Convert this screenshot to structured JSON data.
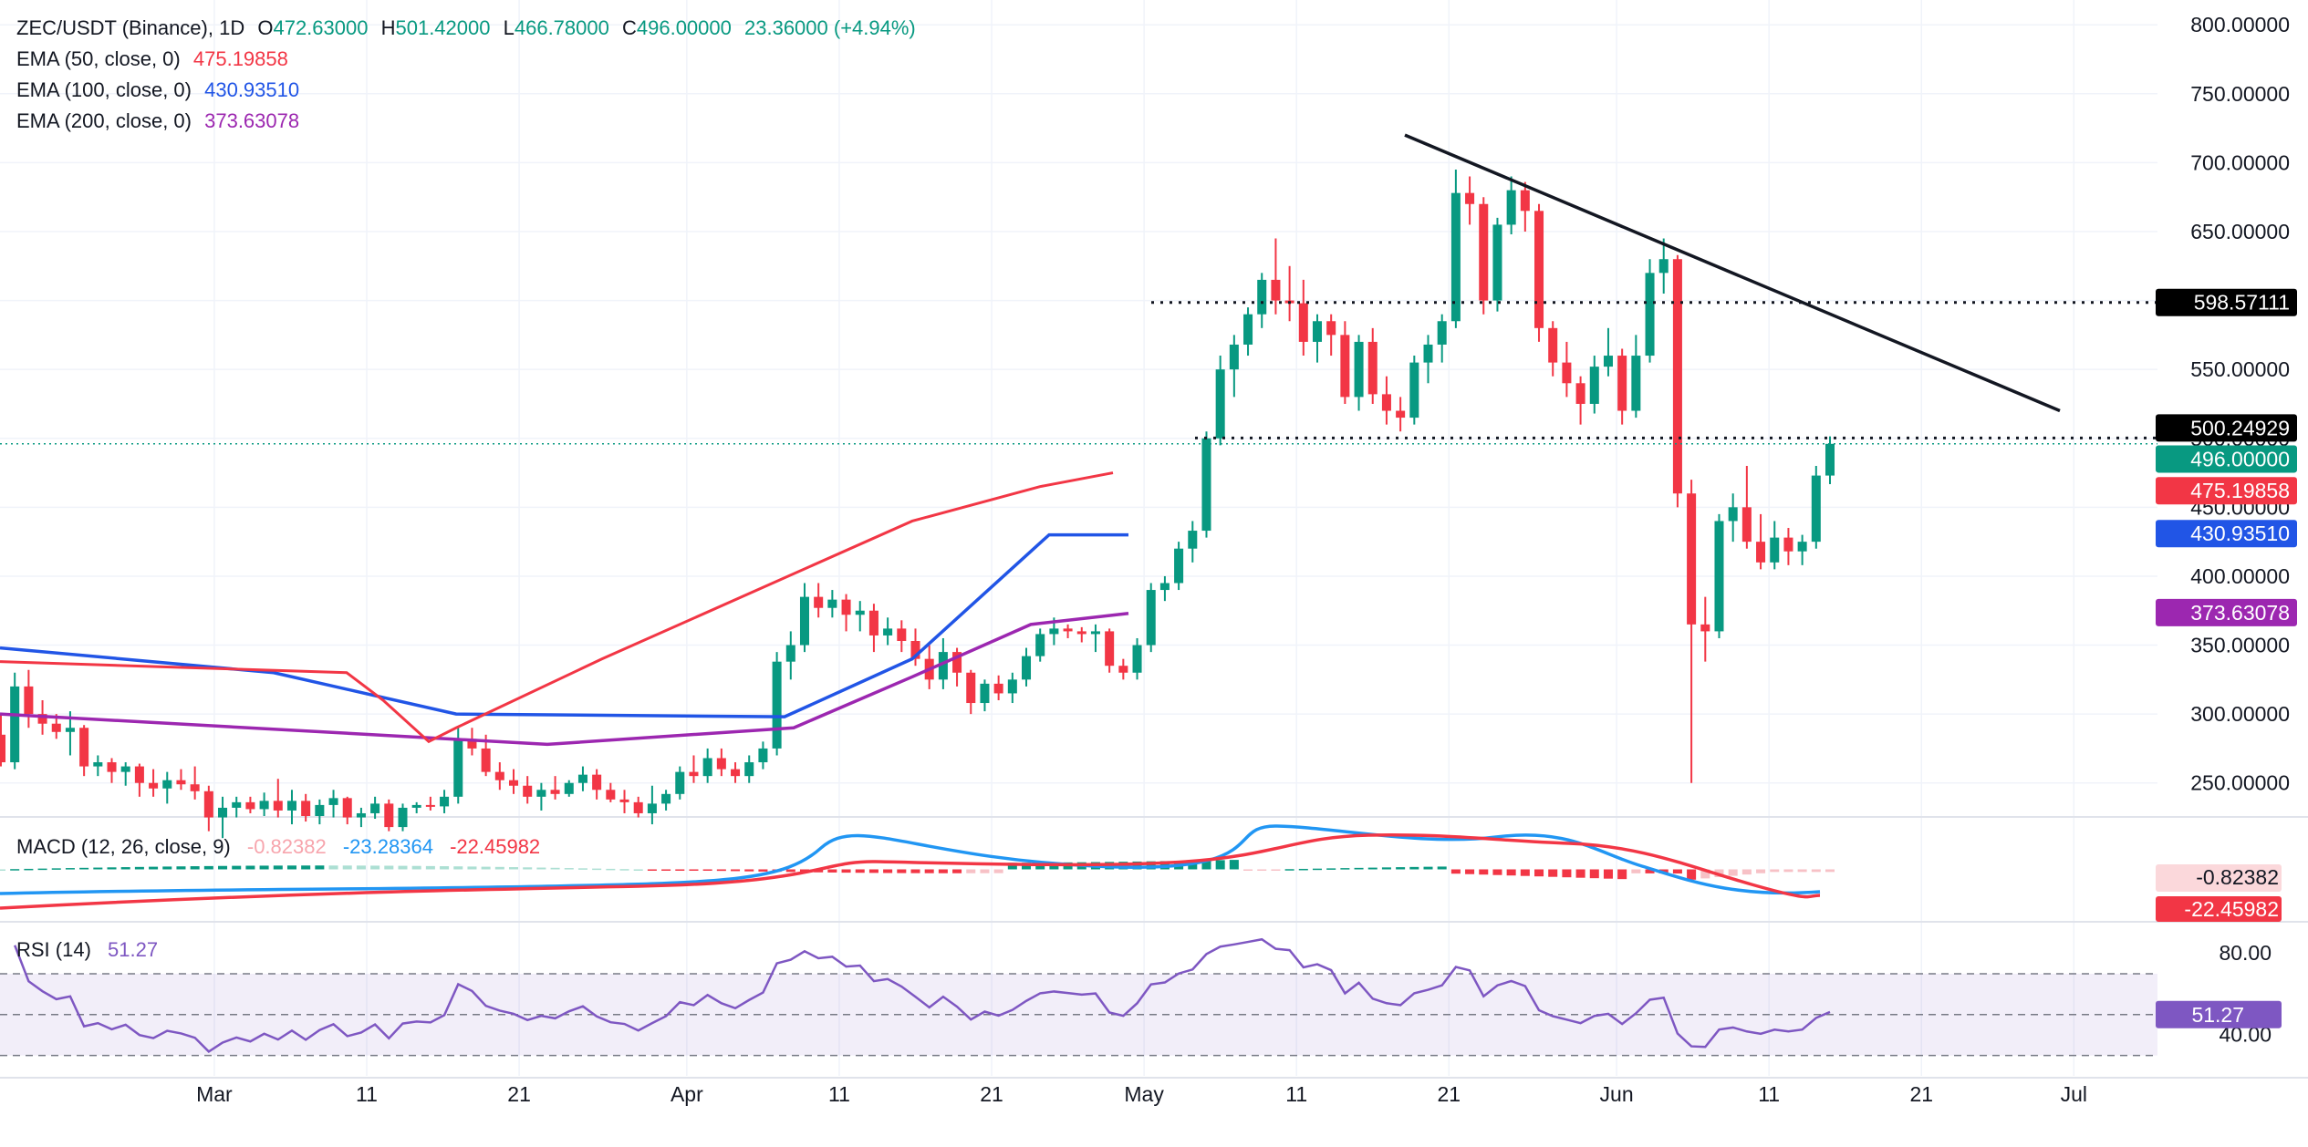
{
  "header": {
    "symbol": "ZEC/USDT (Binance), 1D",
    "ohlc": {
      "o_label": "O",
      "o": "472.63000",
      "h_label": "H",
      "h": "501.42000",
      "l_label": "L",
      "l": "466.78000",
      "c_label": "C",
      "c": "496.00000",
      "change": "23.36000 (+4.94%)"
    }
  },
  "indicators": [
    {
      "label": "EMA (50, close, 0)",
      "value": "475.19858",
      "color": "#f23645"
    },
    {
      "label": "EMA (100, close, 0)",
      "value": "430.93510",
      "color": "#2155e6"
    },
    {
      "label": "EMA (200, close, 0)",
      "value": "373.63078",
      "color": "#9c27b0"
    }
  ],
  "macd_legend": {
    "label": "MACD (12, 26, close, 9)",
    "histogram": "-0.82382",
    "macd": "-23.28364",
    "signal": "-22.45982"
  },
  "rsi_legend": {
    "label": "RSI (14)",
    "value": "51.27"
  },
  "price_labels": {
    "level_upper": "598.57111",
    "level_lower": "500.24929",
    "last": "496.00000",
    "ema50": "475.19858",
    "ema100": "430.93510",
    "ema200": "373.63078",
    "macd_hist": "-0.82382",
    "macd_signal": "-22.45982",
    "rsi": "51.27"
  },
  "colors": {
    "up": "#089981",
    "down": "#f23645",
    "ema50": "#f23645",
    "ema100": "#2155e6",
    "ema200": "#9c27b0",
    "rsi": "#7e57c2",
    "macd": "#2196f3",
    "signal": "#f23645"
  },
  "chart_data": {
    "type": "candlestick",
    "title": "ZEC/USDT (Binance), 1D",
    "y_ticks": [
      "250.00000",
      "300.00000",
      "350.00000",
      "400.00000",
      "450.00000",
      "500.00000",
      "550.00000",
      "600.00000",
      "650.00000",
      "700.00000",
      "750.00000",
      "800.00000"
    ],
    "ylim": [
      226,
      818
    ],
    "x_labels": [
      {
        "date": "2025-03-01",
        "label": "Mar"
      },
      {
        "date": "2025-03-11",
        "label": "11"
      },
      {
        "date": "2025-03-21",
        "label": "21"
      },
      {
        "date": "2025-04-01",
        "label": "Apr"
      },
      {
        "date": "2025-04-11",
        "label": "11"
      },
      {
        "date": "2025-04-21",
        "label": "21"
      },
      {
        "date": "2025-05-01",
        "label": "May"
      },
      {
        "date": "2025-05-11",
        "label": "11"
      },
      {
        "date": "2025-05-21",
        "label": "21"
      },
      {
        "date": "2025-06-01",
        "label": "Jun"
      },
      {
        "date": "2025-06-11",
        "label": "11"
      },
      {
        "date": "2025-06-21",
        "label": "21"
      },
      {
        "date": "2025-07-01",
        "label": "Jul"
      }
    ],
    "dates": [
      "2025-02-15",
      "2025-06-15"
    ],
    "ohlc": [
      [
        285,
        300,
        262,
        265
      ],
      [
        265,
        330,
        260,
        320
      ],
      [
        320,
        332,
        290,
        300
      ],
      [
        300,
        310,
        285,
        293
      ],
      [
        293,
        300,
        282,
        287
      ],
      [
        287,
        302,
        270,
        290
      ],
      [
        290,
        292,
        255,
        262
      ],
      [
        262,
        270,
        255,
        265
      ],
      [
        265,
        268,
        250,
        258
      ],
      [
        258,
        265,
        248,
        262
      ],
      [
        262,
        264,
        240,
        250
      ],
      [
        250,
        260,
        240,
        246
      ],
      [
        246,
        258,
        235,
        252
      ],
      [
        252,
        260,
        245,
        249
      ],
      [
        249,
        262,
        238,
        244
      ],
      [
        244,
        248,
        215,
        225
      ],
      [
        225,
        240,
        210,
        232
      ],
      [
        232,
        240,
        225,
        236
      ],
      [
        236,
        240,
        228,
        231
      ],
      [
        231,
        243,
        226,
        237
      ],
      [
        237,
        253,
        225,
        230
      ],
      [
        230,
        245,
        220,
        237
      ],
      [
        237,
        242,
        222,
        226
      ],
      [
        226,
        238,
        220,
        234
      ],
      [
        234,
        245,
        225,
        239
      ],
      [
        239,
        240,
        220,
        225
      ],
      [
        225,
        232,
        218,
        228
      ],
      [
        228,
        240,
        224,
        235
      ],
      [
        235,
        238,
        215,
        218
      ],
      [
        218,
        235,
        215,
        232
      ],
      [
        232,
        236,
        228,
        234
      ],
      [
        234,
        240,
        230,
        233
      ],
      [
        233,
        245,
        228,
        240
      ],
      [
        240,
        290,
        235,
        282
      ],
      [
        282,
        290,
        270,
        275
      ],
      [
        275,
        285,
        255,
        258
      ],
      [
        258,
        265,
        245,
        252
      ],
      [
        252,
        260,
        242,
        248
      ],
      [
        248,
        255,
        235,
        240
      ],
      [
        240,
        250,
        230,
        245
      ],
      [
        245,
        255,
        238,
        242
      ],
      [
        242,
        252,
        240,
        250
      ],
      [
        250,
        262,
        244,
        256
      ],
      [
        256,
        260,
        238,
        245
      ],
      [
        245,
        250,
        236,
        238
      ],
      [
        238,
        245,
        228,
        236
      ],
      [
        236,
        240,
        225,
        228
      ],
      [
        228,
        248,
        220,
        235
      ],
      [
        235,
        245,
        230,
        242
      ],
      [
        242,
        262,
        238,
        258
      ],
      [
        258,
        270,
        250,
        255
      ],
      [
        255,
        275,
        250,
        268
      ],
      [
        268,
        275,
        255,
        260
      ],
      [
        260,
        265,
        250,
        255
      ],
      [
        255,
        270,
        250,
        265
      ],
      [
        265,
        280,
        260,
        275
      ],
      [
        275,
        345,
        270,
        338
      ],
      [
        338,
        360,
        325,
        350
      ],
      [
        350,
        395,
        345,
        385
      ],
      [
        385,
        395,
        370,
        377
      ],
      [
        377,
        390,
        370,
        383
      ],
      [
        383,
        387,
        360,
        372
      ],
      [
        372,
        382,
        360,
        375
      ],
      [
        375,
        380,
        345,
        357
      ],
      [
        357,
        370,
        350,
        362
      ],
      [
        362,
        368,
        345,
        353
      ],
      [
        353,
        362,
        335,
        340
      ],
      [
        340,
        350,
        318,
        325
      ],
      [
        325,
        355,
        318,
        345
      ],
      [
        345,
        348,
        320,
        330
      ],
      [
        330,
        332,
        300,
        308
      ],
      [
        308,
        325,
        302,
        322
      ],
      [
        322,
        328,
        310,
        315
      ],
      [
        315,
        330,
        308,
        325
      ],
      [
        325,
        348,
        320,
        342
      ],
      [
        342,
        362,
        338,
        358
      ],
      [
        358,
        370,
        350,
        362
      ],
      [
        362,
        365,
        355,
        360
      ],
      [
        360,
        363,
        352,
        358
      ],
      [
        358,
        365,
        345,
        360
      ],
      [
        360,
        362,
        330,
        335
      ],
      [
        335,
        340,
        325,
        330
      ],
      [
        330,
        355,
        325,
        350
      ],
      [
        350,
        395,
        345,
        390
      ],
      [
        390,
        400,
        382,
        395
      ],
      [
        395,
        425,
        390,
        420
      ],
      [
        420,
        440,
        410,
        433
      ],
      [
        433,
        505,
        428,
        500
      ],
      [
        500,
        560,
        495,
        550
      ],
      [
        550,
        575,
        530,
        568
      ],
      [
        568,
        595,
        560,
        590
      ],
      [
        590,
        620,
        580,
        615
      ],
      [
        615,
        645,
        590,
        600
      ],
      [
        600,
        625,
        585,
        598
      ],
      [
        598,
        615,
        560,
        570
      ],
      [
        570,
        590,
        555,
        585
      ],
      [
        585,
        590,
        560,
        575
      ],
      [
        575,
        585,
        525,
        530
      ],
      [
        530,
        575,
        520,
        570
      ],
      [
        570,
        580,
        525,
        532
      ],
      [
        532,
        545,
        510,
        520
      ],
      [
        520,
        530,
        505,
        515
      ],
      [
        515,
        560,
        510,
        555
      ],
      [
        555,
        575,
        540,
        568
      ],
      [
        568,
        590,
        555,
        585
      ],
      [
        585,
        695,
        580,
        678
      ],
      [
        678,
        690,
        655,
        670
      ],
      [
        670,
        675,
        590,
        600
      ],
      [
        600,
        660,
        592,
        655
      ],
      [
        655,
        690,
        648,
        680
      ],
      [
        680,
        686,
        650,
        665
      ],
      [
        665,
        670,
        570,
        580
      ],
      [
        580,
        585,
        545,
        555
      ],
      [
        555,
        570,
        530,
        540
      ],
      [
        540,
        545,
        510,
        525
      ],
      [
        525,
        560,
        518,
        552
      ],
      [
        552,
        580,
        545,
        560
      ],
      [
        560,
        565,
        510,
        520
      ],
      [
        520,
        575,
        515,
        560
      ],
      [
        560,
        630,
        555,
        620
      ],
      [
        620,
        645,
        605,
        630
      ],
      [
        630,
        633,
        450,
        460
      ],
      [
        460,
        470,
        250,
        365
      ],
      [
        365,
        385,
        338,
        360
      ],
      [
        360,
        445,
        355,
        440
      ],
      [
        440,
        460,
        425,
        450
      ],
      [
        450,
        480,
        420,
        425
      ],
      [
        425,
        445,
        405,
        410
      ],
      [
        410,
        440,
        405,
        428
      ],
      [
        428,
        435,
        408,
        418
      ],
      [
        418,
        430,
        408,
        425
      ],
      [
        425,
        480,
        420,
        473
      ],
      [
        473,
        501.42,
        466.78,
        496
      ]
    ],
    "ema50": [
      338,
      380,
      330,
      420,
      310,
      470,
      280,
      500,
      290,
      660,
      340,
      1000,
      440,
      1140,
      465,
      1220,
      475
    ],
    "ema100": [
      348,
      300,
      330,
      500,
      300,
      860,
      298,
      1000,
      340,
      1150,
      430,
      1237,
      430
    ],
    "ema200": [
      300,
      600,
      278,
      870,
      290,
      1000,
      327,
      1130,
      365,
      1237,
      373
    ],
    "horizontal_levels": [
      598.57,
      500.25
    ],
    "trendline": [
      [
        720,
        1000
      ],
      [
        520,
        1400
      ]
    ],
    "macd": {
      "ylim": [
        -40,
        40
      ]
    },
    "rsi": {
      "levels": [
        70,
        50,
        30
      ],
      "tick_labels": [
        "80.00",
        "40.00"
      ],
      "ylim": [
        20,
        95
      ],
      "last": 51.27
    }
  }
}
